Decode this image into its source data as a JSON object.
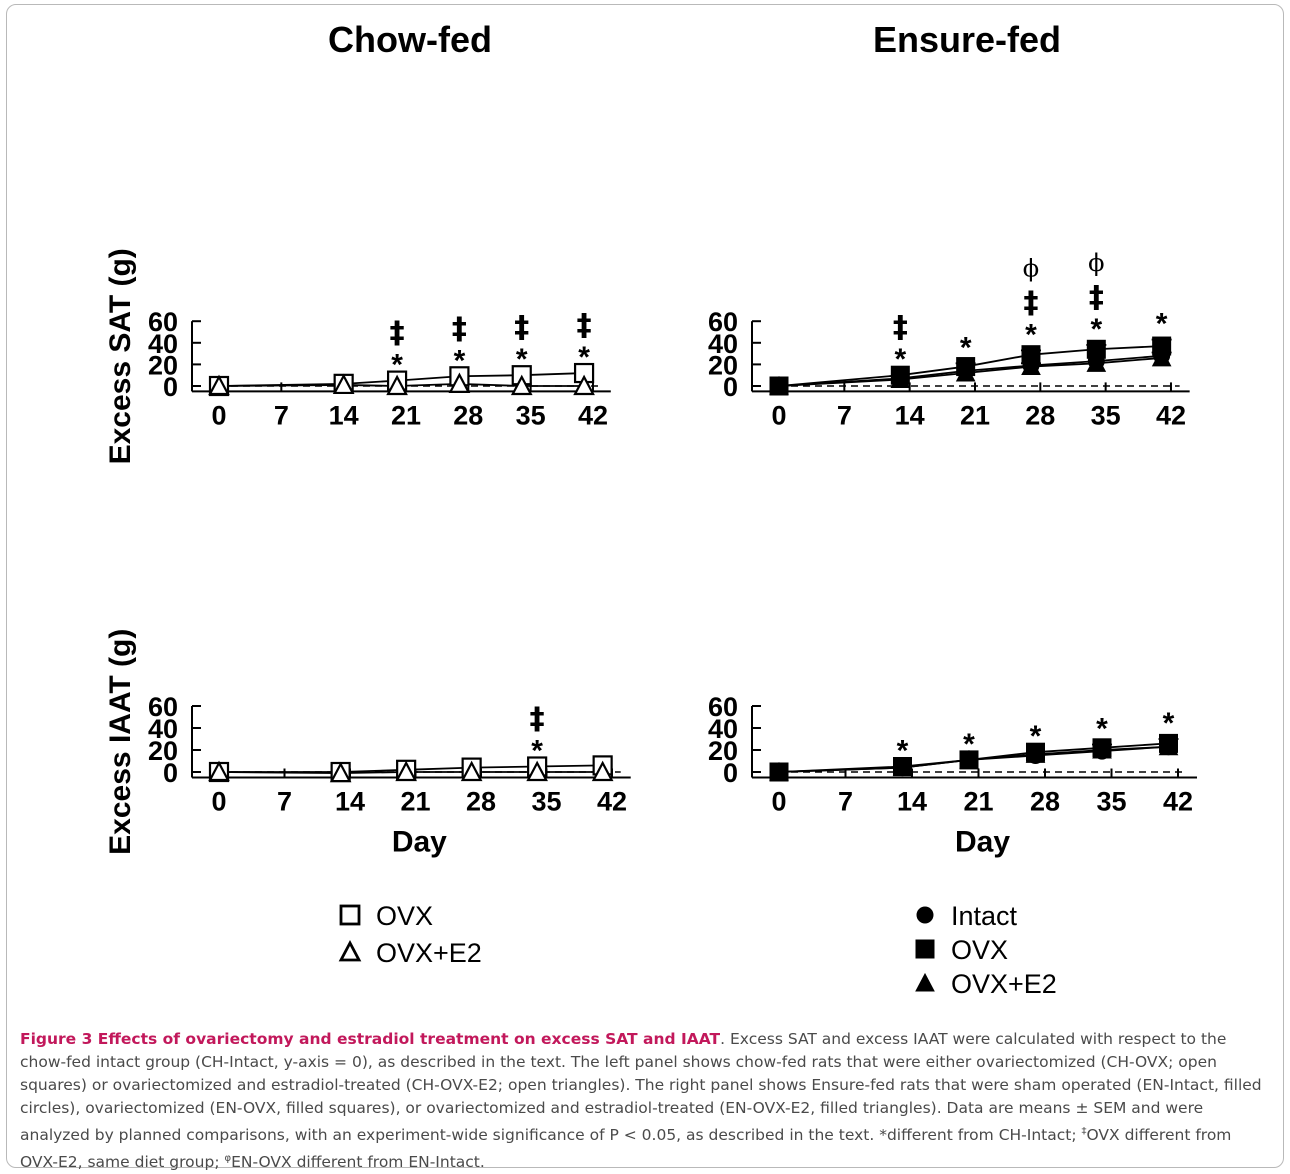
{
  "figure": {
    "column_titles": [
      "Chow-fed",
      "Ensure-fed"
    ],
    "x_axis_title": "Day",
    "y_axis_titles": [
      "Excess SAT (g)",
      "Excess IAAT (g)"
    ],
    "legends": {
      "chow": [
        {
          "label": "OVX",
          "marker": "open-square-marker"
        },
        {
          "label": "OVX+E2",
          "marker": "open-triangle-marker"
        }
      ],
      "ensure": [
        {
          "label": "Intact",
          "marker": "filled-circle-marker"
        },
        {
          "label": "OVX",
          "marker": "filled-square-marker"
        },
        {
          "label": "OVX+E2",
          "marker": "filled-triangle-marker"
        }
      ]
    }
  },
  "chart_data": [
    {
      "id": "chow-sat",
      "type": "line",
      "column": "Chow-fed",
      "ylabel": "Excess SAT (g)",
      "xlabel": "",
      "xlim": [
        -2,
        44
      ],
      "ylim": [
        -5,
        60
      ],
      "xticks": [
        0,
        7,
        14,
        21,
        28,
        35,
        42
      ],
      "yticks": [
        0,
        20,
        40,
        60
      ],
      "baseline_dashed": 0,
      "series": [
        {
          "name": "OVX",
          "marker": "open-square",
          "x": [
            0,
            14,
            20,
            27,
            34,
            41
          ],
          "y": [
            0,
            2,
            5,
            9,
            10,
            12
          ],
          "err": [
            0,
            0,
            0,
            0,
            0,
            0
          ]
        },
        {
          "name": "OVX+E2",
          "marker": "open-triangle",
          "x": [
            0,
            14,
            20,
            27,
            34,
            41
          ],
          "y": [
            0,
            1,
            0,
            2,
            0,
            0
          ],
          "err": [
            0,
            0,
            0,
            0,
            0,
            0
          ]
        }
      ],
      "annotations": [
        {
          "x": 20,
          "labels": [
            "*",
            "‡"
          ]
        },
        {
          "x": 27,
          "labels": [
            "*",
            "‡"
          ]
        },
        {
          "x": 34,
          "labels": [
            "*",
            "‡"
          ]
        },
        {
          "x": 41,
          "labels": [
            "*",
            "‡"
          ]
        }
      ]
    },
    {
      "id": "ensure-sat",
      "type": "line",
      "column": "Ensure-fed",
      "ylabel": "",
      "xlabel": "",
      "xlim": [
        -2,
        44
      ],
      "ylim": [
        -5,
        60
      ],
      "xticks": [
        0,
        7,
        14,
        21,
        28,
        35,
        42
      ],
      "yticks": [
        0,
        20,
        40,
        60
      ],
      "baseline_dashed": 0,
      "series": [
        {
          "name": "Intact",
          "marker": "filled-circle",
          "x": [
            0,
            13,
            20,
            27,
            34,
            41
          ],
          "y": [
            0,
            7,
            14,
            19,
            23,
            28
          ],
          "err": [
            0,
            0,
            0,
            2,
            0,
            3
          ]
        },
        {
          "name": "OVX",
          "marker": "filled-square",
          "x": [
            0,
            13,
            20,
            27,
            34,
            41
          ],
          "y": [
            0,
            10,
            18,
            29,
            34,
            37
          ],
          "err": [
            0,
            0,
            3,
            4,
            4,
            6
          ]
        },
        {
          "name": "OVX+E2",
          "marker": "filled-triangle",
          "x": [
            0,
            13,
            20,
            27,
            34,
            41
          ],
          "y": [
            0,
            6,
            12,
            18,
            21,
            26
          ],
          "err": [
            0,
            0,
            0,
            0,
            0,
            0
          ]
        }
      ],
      "annotations": [
        {
          "x": 13,
          "labels": [
            "*",
            "‡"
          ]
        },
        {
          "x": 20,
          "labels": [
            "*"
          ]
        },
        {
          "x": 27,
          "labels": [
            "*",
            "‡",
            "ϕ"
          ]
        },
        {
          "x": 34,
          "labels": [
            "*",
            "‡",
            "ϕ"
          ]
        },
        {
          "x": 41,
          "labels": [
            "*"
          ]
        }
      ]
    },
    {
      "id": "chow-iaat",
      "type": "line",
      "column": "Chow-fed",
      "ylabel": "Excess IAAT (g)",
      "xlabel": "Day",
      "xlim": [
        -2,
        44
      ],
      "ylim": [
        -5,
        60
      ],
      "xticks": [
        0,
        7,
        14,
        21,
        28,
        35,
        42
      ],
      "yticks": [
        0,
        20,
        40,
        60
      ],
      "baseline_dashed": 0,
      "series": [
        {
          "name": "OVX",
          "marker": "open-square",
          "x": [
            0,
            13,
            20,
            27,
            34,
            41
          ],
          "y": [
            0,
            0,
            2,
            4,
            5,
            6
          ],
          "err": [
            0,
            0,
            0,
            0,
            0,
            0
          ]
        },
        {
          "name": "OVX+E2",
          "marker": "open-triangle",
          "x": [
            0,
            13,
            20,
            27,
            34,
            41
          ],
          "y": [
            0,
            -1,
            0,
            0,
            0,
            0
          ],
          "err": [
            0,
            0,
            0,
            0,
            0,
            0
          ]
        }
      ],
      "annotations": [
        {
          "x": 34,
          "labels": [
            "*",
            "‡"
          ]
        }
      ]
    },
    {
      "id": "ensure-iaat",
      "type": "line",
      "column": "Ensure-fed",
      "ylabel": "",
      "xlabel": "Day",
      "xlim": [
        -2,
        44
      ],
      "ylim": [
        -5,
        60
      ],
      "xticks": [
        0,
        7,
        14,
        21,
        28,
        35,
        42
      ],
      "yticks": [
        0,
        20,
        40,
        60
      ],
      "baseline_dashed": 0,
      "series": [
        {
          "name": "Intact",
          "marker": "filled-circle",
          "x": [
            0,
            13,
            20,
            27,
            34,
            41
          ],
          "y": [
            0,
            4,
            11,
            15,
            19,
            23
          ],
          "err": [
            0,
            0,
            0,
            0,
            0,
            0
          ]
        },
        {
          "name": "OVX",
          "marker": "filled-square",
          "x": [
            0,
            13,
            20,
            27,
            34,
            41
          ],
          "y": [
            0,
            5,
            11,
            18,
            22,
            26
          ],
          "err": [
            0,
            0,
            0,
            0,
            3,
            4
          ]
        },
        {
          "name": "OVX+E2",
          "marker": "filled-triangle",
          "x": [
            0,
            13,
            20,
            27,
            34,
            41
          ],
          "y": [
            0,
            4,
            11,
            16,
            20,
            23
          ],
          "err": [
            0,
            0,
            0,
            0,
            0,
            0
          ]
        }
      ],
      "annotations": [
        {
          "x": 13,
          "labels": [
            "*"
          ]
        },
        {
          "x": 20,
          "labels": [
            "*"
          ]
        },
        {
          "x": 27,
          "labels": [
            "*"
          ]
        },
        {
          "x": 34,
          "labels": [
            "*"
          ]
        },
        {
          "x": 41,
          "labels": [
            "*"
          ]
        }
      ]
    }
  ],
  "caption": {
    "title": "Figure 3 Effects of ovariectomy and estradiol treatment on excess SAT and IAAT",
    "body_1": ". Excess SAT and excess IAAT were calculated with respect to the chow-fed intact group (CH-Intact, y-axis = 0), as described in the text. The left panel shows chow-fed rats that were either ovariectomized (CH-OVX; open squares) or ovariectomized and estradiol-treated (CH-OVX-E2; open triangles). The right panel shows Ensure-fed rats that were sham operated (EN-Intact, filled circles), ovariectomized (EN-OVX, filled squares), or ovariectomized and estradiol-treated (EN-OVX-E2, filled triangles). Data are means ± SEM and were analyzed by planned comparisons, with an experiment-wide significance of P < 0.05, as described in the text. *different from CH-Intact; ",
    "sup_1": "‡",
    "body_2": "OVX different from OVX-E2, same diet group; ",
    "sup_2": "φ",
    "body_3": "EN-OVX different from EN-Intact."
  }
}
